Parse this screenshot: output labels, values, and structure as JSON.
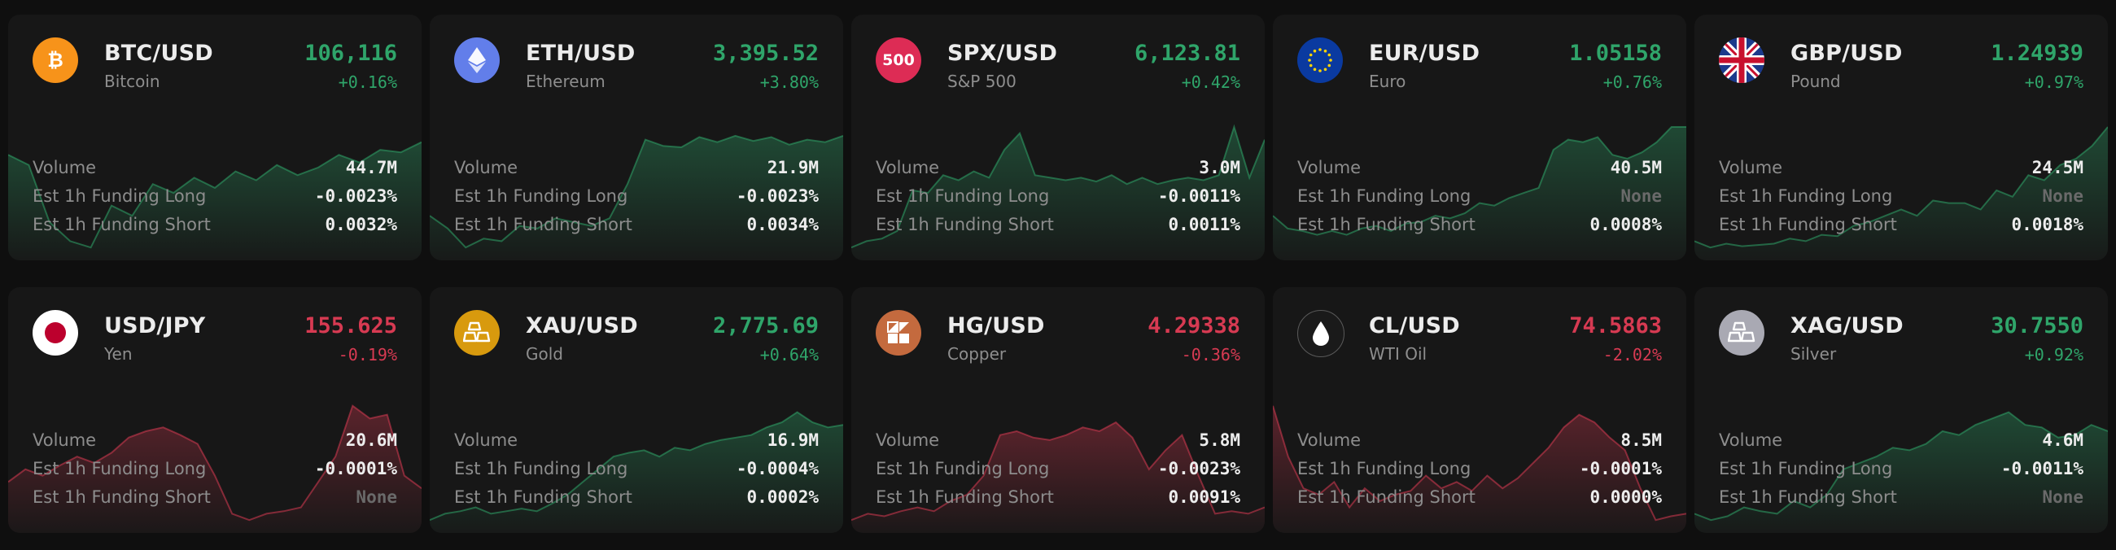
{
  "colors": {
    "up": "#2fa56a",
    "down": "#d73a52",
    "card_bg": "#171717",
    "page_bg": "#0f0f0f"
  },
  "labels": {
    "volume": "Volume",
    "funding_long": "Est 1h Funding Long",
    "funding_short": "Est 1h Funding Short"
  },
  "markets": [
    {
      "symbol": "BTC/USD",
      "name": "Bitcoin",
      "price": "106,116",
      "change": "+0.16%",
      "trend": "up",
      "icon": "bitcoin-icon",
      "logo_text": "",
      "volume": "44.7M",
      "funding_long": "-0.0023%",
      "funding_short": "0.0032%",
      "spark": [
        0.78,
        0.7,
        0.25,
        0.1,
        0.05,
        0.38,
        0.3,
        0.55,
        0.48,
        0.6,
        0.52,
        0.65,
        0.58,
        0.7,
        0.62,
        0.68,
        0.78,
        0.72,
        0.82,
        0.8,
        0.88
      ]
    },
    {
      "symbol": "ETH/USD",
      "name": "Ethereum",
      "price": "3,395.52",
      "change": "+3.80%",
      "trend": "up",
      "icon": "ethereum-icon",
      "logo_text": "",
      "volume": "21.9M",
      "funding_long": "-0.0023%",
      "funding_short": "0.0034%",
      "spark": [
        0.3,
        0.2,
        0.05,
        0.12,
        0.1,
        0.22,
        0.2,
        0.28,
        0.25,
        0.22,
        0.28,
        0.55,
        0.9,
        0.85,
        0.84,
        0.92,
        0.88,
        0.93,
        0.89,
        0.92,
        0.86,
        0.9,
        0.88,
        0.93
      ]
    },
    {
      "symbol": "SPX/USD",
      "name": "S&P 500",
      "price": "6,123.81",
      "change": "+0.42%",
      "trend": "up",
      "icon": "sp500-icon",
      "logo_text": "500",
      "volume": "3.0M",
      "funding_long": "-0.0011%",
      "funding_short": "0.0011%",
      "spark": [
        0.05,
        0.1,
        0.12,
        0.18,
        0.5,
        0.48,
        0.62,
        0.58,
        0.65,
        0.6,
        0.82,
        0.95,
        0.62,
        0.6,
        0.58,
        0.6,
        0.57,
        0.62,
        0.55,
        0.6,
        0.55,
        0.58,
        0.6,
        0.58,
        0.62,
        1.0,
        0.6,
        0.9
      ]
    },
    {
      "symbol": "EUR/USD",
      "name": "Euro",
      "price": "1.05158",
      "change": "+0.76%",
      "trend": "up",
      "icon": "eu-flag-icon",
      "logo_text": "",
      "volume": "40.5M",
      "funding_long": "None",
      "funding_short": "0.0008%",
      "spark": [
        0.3,
        0.2,
        0.18,
        0.15,
        0.18,
        0.15,
        0.2,
        0.22,
        0.18,
        0.24,
        0.25,
        0.3,
        0.28,
        0.32,
        0.4,
        0.38,
        0.44,
        0.48,
        0.52,
        0.82,
        0.9,
        0.88,
        0.92,
        0.78,
        0.75,
        0.8,
        0.88,
        1.0,
        1.0
      ]
    },
    {
      "symbol": "GBP/USD",
      "name": "Pound",
      "price": "1.24939",
      "change": "+0.97%",
      "trend": "up",
      "icon": "uk-flag-icon",
      "logo_text": "",
      "volume": "24.5M",
      "funding_long": "None",
      "funding_short": "0.0018%",
      "spark": [
        0.1,
        0.05,
        0.08,
        0.06,
        0.07,
        0.08,
        0.12,
        0.1,
        0.15,
        0.14,
        0.22,
        0.25,
        0.3,
        0.35,
        0.3,
        0.42,
        0.4,
        0.4,
        0.35,
        0.5,
        0.45,
        0.62,
        0.58,
        0.7,
        0.75,
        0.85,
        1.0
      ]
    },
    {
      "symbol": "USD/JPY",
      "name": "Yen",
      "price": "155.625",
      "change": "-0.19%",
      "trend": "down",
      "icon": "japan-flag-icon",
      "logo_text": "",
      "volume": "20.6M",
      "funding_long": "-0.0001%",
      "funding_short": "None",
      "spark": [
        0.35,
        0.45,
        0.4,
        0.48,
        0.55,
        0.5,
        0.58,
        0.7,
        0.75,
        0.78,
        0.72,
        0.65,
        0.4,
        0.1,
        0.05,
        0.1,
        0.12,
        0.15,
        0.35,
        0.55,
        0.95,
        0.85,
        0.88,
        0.4,
        0.3
      ]
    },
    {
      "symbol": "XAU/USD",
      "name": "Gold",
      "price": "2,775.69",
      "change": "+0.64%",
      "trend": "up",
      "icon": "gold-bars-icon",
      "logo_text": "",
      "volume": "16.9M",
      "funding_long": "-0.0004%",
      "funding_short": "0.0002%",
      "spark": [
        0.05,
        0.1,
        0.12,
        0.15,
        0.1,
        0.12,
        0.14,
        0.12,
        0.18,
        0.25,
        0.35,
        0.45,
        0.55,
        0.58,
        0.6,
        0.55,
        0.62,
        0.6,
        0.65,
        0.68,
        0.7,
        0.72,
        0.78,
        0.82,
        0.9,
        0.82,
        0.78,
        0.8
      ]
    },
    {
      "symbol": "HG/USD",
      "name": "Copper",
      "price": "4.29338",
      "change": "-0.36%",
      "trend": "down",
      "icon": "copper-icon",
      "logo_text": "",
      "volume": "5.8M",
      "funding_long": "-0.0023%",
      "funding_short": "0.0091%",
      "spark": [
        0.05,
        0.1,
        0.08,
        0.12,
        0.15,
        0.12,
        0.2,
        0.25,
        0.4,
        0.72,
        0.75,
        0.7,
        0.68,
        0.72,
        0.78,
        0.75,
        0.82,
        0.7,
        0.45,
        0.6,
        0.72,
        0.4,
        0.1,
        0.12,
        0.1,
        0.15
      ]
    },
    {
      "symbol": "CL/USD",
      "name": "WTI Oil",
      "price": "74.5863",
      "change": "-2.02%",
      "trend": "down",
      "icon": "oil-drop-icon",
      "logo_text": "",
      "volume": "8.5M",
      "funding_long": "-0.0001%",
      "funding_short": "0.0000%",
      "spark": [
        0.95,
        0.55,
        0.3,
        0.25,
        0.35,
        0.15,
        0.3,
        0.2,
        0.25,
        0.28,
        0.4,
        0.3,
        0.35,
        0.28,
        0.4,
        0.3,
        0.38,
        0.5,
        0.62,
        0.78,
        0.88,
        0.82,
        0.7,
        0.6,
        0.3,
        0.05,
        0.08,
        0.1
      ]
    },
    {
      "symbol": "XAG/USD",
      "name": "Silver",
      "price": "30.7550",
      "change": "+0.92%",
      "trend": "up",
      "icon": "silver-bars-icon",
      "logo_text": "",
      "volume": "4.6M",
      "funding_long": "-0.0011%",
      "funding_short": "None",
      "spark": [
        0.1,
        0.05,
        0.08,
        0.15,
        0.12,
        0.1,
        0.2,
        0.15,
        0.25,
        0.45,
        0.5,
        0.55,
        0.62,
        0.6,
        0.65,
        0.75,
        0.72,
        0.8,
        0.85,
        0.9,
        0.8,
        0.78,
        0.7,
        0.72,
        0.8,
        0.75
      ]
    }
  ]
}
